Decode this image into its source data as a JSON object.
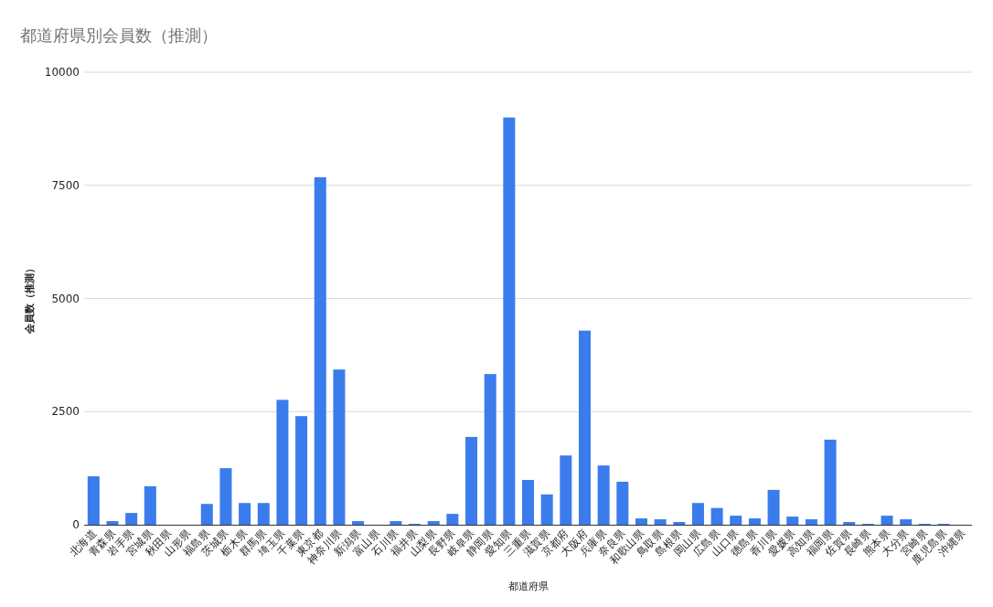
{
  "chart_data": {
    "type": "bar",
    "title": "都道府県別会員数（推測）",
    "xlabel": "都道府県",
    "ylabel": "会員数（推測）",
    "categories": [
      "北海道",
      "青森県",
      "岩手県",
      "宮城県",
      "秋田県",
      "山形県",
      "福島県",
      "茨城県",
      "栃木県",
      "群馬県",
      "埼玉県",
      "千葉県",
      "東京都",
      "神奈川県",
      "新潟県",
      "富山県",
      "石川県",
      "福井県",
      "山梨県",
      "長野県",
      "岐阜県",
      "静岡県",
      "愛知県",
      "三重県",
      "滋賀県",
      "京都府",
      "大阪府",
      "兵庫県",
      "奈良県",
      "和歌山県",
      "鳥取県",
      "島根県",
      "岡山県",
      "広島県",
      "山口県",
      "徳島県",
      "香川県",
      "愛媛県",
      "高知県",
      "福岡県",
      "佐賀県",
      "長崎県",
      "熊本県",
      "大分県",
      "宮崎県",
      "鹿児島県",
      "沖縄県"
    ],
    "values": [
      1070,
      80,
      260,
      850,
      0,
      0,
      460,
      1250,
      480,
      480,
      2760,
      2400,
      7680,
      3430,
      80,
      0,
      80,
      20,
      80,
      240,
      1940,
      3330,
      9000,
      990,
      670,
      1530,
      4290,
      1310,
      950,
      140,
      120,
      60,
      480,
      370,
      200,
      140,
      770,
      180,
      120,
      1880,
      60,
      20,
      200,
      120,
      20,
      20,
      0
    ],
    "color": "#3b7ced",
    "ylim": [
      0,
      10000
    ],
    "yticks": [
      0,
      2500,
      5000,
      7500,
      10000
    ],
    "grid": "y"
  }
}
